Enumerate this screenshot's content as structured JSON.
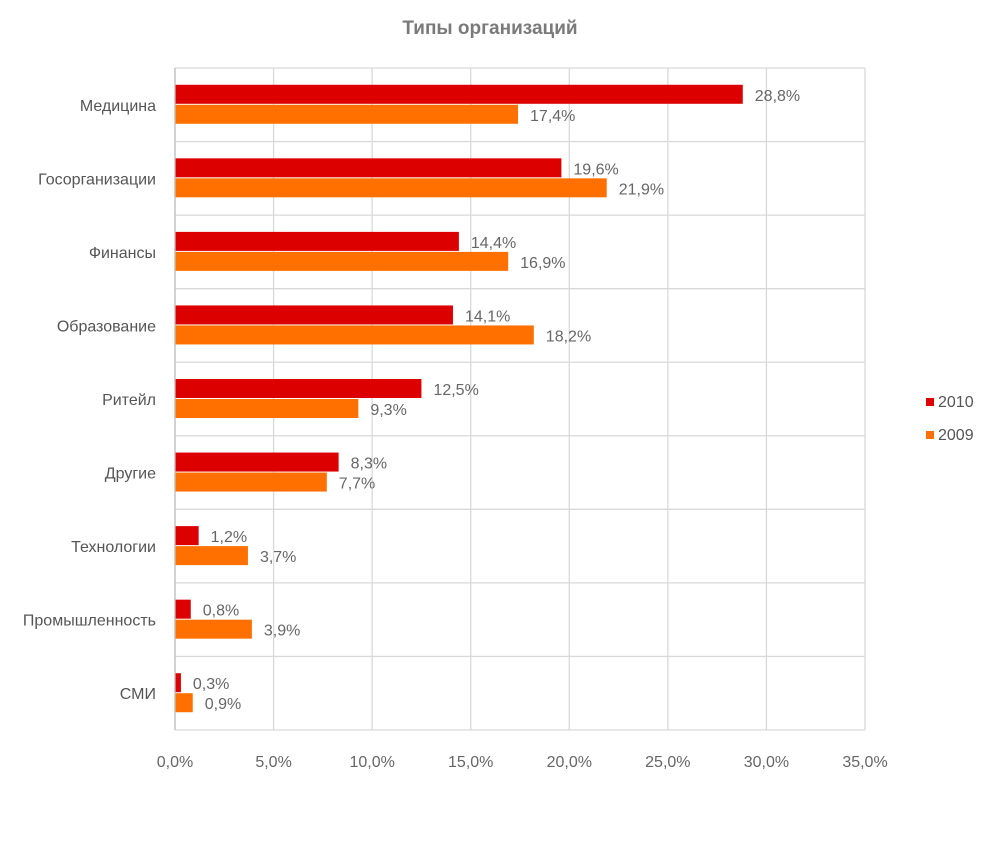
{
  "chart_data": {
    "type": "bar",
    "orientation": "horizontal",
    "title": "Типы организаций",
    "categories": [
      "Медицина",
      "Госорганизации",
      "Финансы",
      "Образование",
      "Ритейл",
      "Другие",
      "Технологии",
      "Промышленность",
      "СМИ"
    ],
    "series": [
      {
        "name": "2010",
        "color": "#dd0000",
        "values": [
          28.8,
          19.6,
          14.4,
          14.1,
          12.5,
          8.3,
          1.2,
          0.8,
          0.3
        ],
        "labels": [
          "28,8%",
          "19,6%",
          "14,4%",
          "14,1%",
          "12,5%",
          "8,3%",
          "1,2%",
          "0,8%",
          "0,3%"
        ]
      },
      {
        "name": "2009",
        "color": "#ff7000",
        "values": [
          17.4,
          21.9,
          16.9,
          18.2,
          9.3,
          7.7,
          3.7,
          3.9,
          0.9
        ],
        "labels": [
          "17,4%",
          "21,9%",
          "16,9%",
          "18,2%",
          "9,3%",
          "7,7%",
          "3,7%",
          "3,9%",
          "0,9%"
        ]
      }
    ],
    "xlim": [
      0,
      35
    ],
    "xticks": [
      0,
      5,
      10,
      15,
      20,
      25,
      30,
      35
    ],
    "xtick_labels": [
      "0,0%",
      "5,0%",
      "10,0%",
      "15,0%",
      "20,0%",
      "25,0%",
      "30,0%",
      "35,0%"
    ],
    "grid": true,
    "legend_position": "right"
  }
}
